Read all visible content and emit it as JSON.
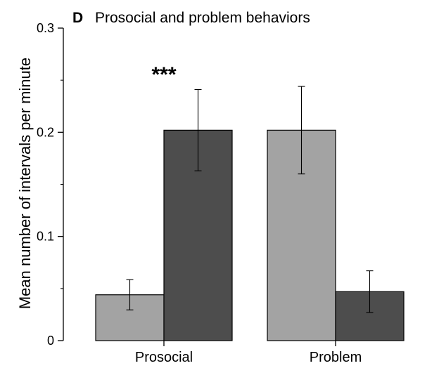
{
  "chart_data": {
    "type": "bar",
    "panel_letter": "D",
    "title": "Prosocial and problem behaviors",
    "xlabel": "",
    "ylabel": "Mean number of intervals per minute",
    "ylim": [
      0,
      0.3
    ],
    "yticks": [
      {
        "value": 0,
        "label": "0"
      },
      {
        "value": 0.1,
        "label": "0.1"
      },
      {
        "value": 0.2,
        "label": "0.2"
      },
      {
        "value": 0.3,
        "label": "0.3"
      }
    ],
    "minor_yticks": [
      0.05,
      0.15,
      0.25
    ],
    "categories": [
      "Prosocial",
      "Problem"
    ],
    "series": [
      {
        "color": "#a3a3a3",
        "values": [
          0.044,
          0.202
        ],
        "errors": [
          0.0145,
          0.042
        ]
      },
      {
        "color": "#4d4d4d",
        "values": [
          0.202,
          0.047
        ],
        "errors": [
          0.039,
          0.02
        ]
      }
    ],
    "annotations": [
      {
        "text": "***",
        "category_index": 0
      }
    ],
    "grid": false,
    "legend": "none"
  }
}
